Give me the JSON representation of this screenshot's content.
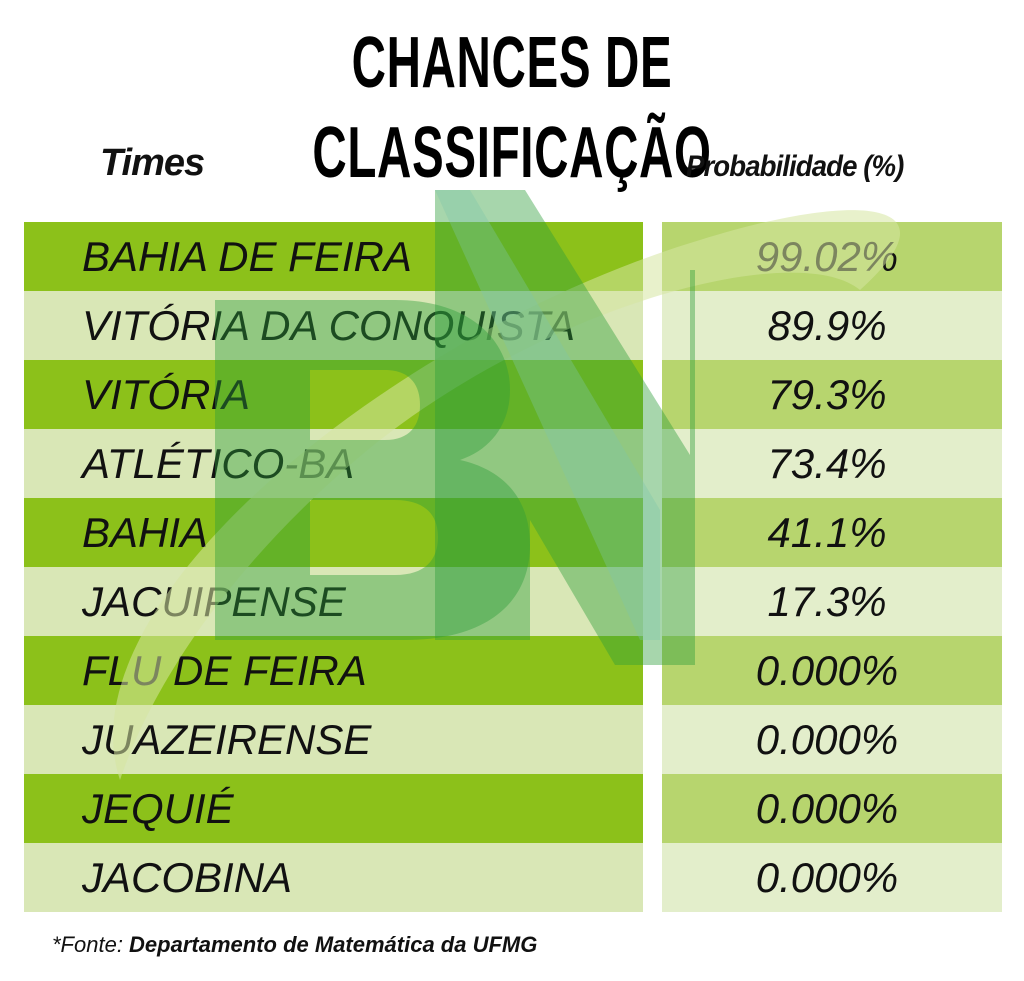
{
  "title": "CHANCES DE CLASSIFICAÇÃO",
  "headers": {
    "team": "Times",
    "probability": "Probabilidade (%)"
  },
  "rows": [
    {
      "team": "BAHIA DE FEIRA",
      "probability": "99.02%"
    },
    {
      "team": "VITÓRIA DA CONQUISTA",
      "probability": "89.9%"
    },
    {
      "team": "VITÓRIA",
      "probability": "79.3%"
    },
    {
      "team": "ATLÉTICO-BA",
      "probability": "73.4%"
    },
    {
      "team": "BAHIA",
      "probability": "41.1%"
    },
    {
      "team": "JACUIPENSE",
      "probability": "17.3%"
    },
    {
      "team": "FLU DE FEIRA",
      "probability": "0.000%"
    },
    {
      "team": "JUAZEIRENSE",
      "probability": "0.000%"
    },
    {
      "team": "JEQUIÉ",
      "probability": "0.000%"
    },
    {
      "team": "JACOBINA",
      "probability": "0.000%"
    }
  ],
  "watermark": {
    "text": "BN",
    "colors": {
      "primary": "#2e9e3a",
      "secondary": "#7fc7a8"
    }
  },
  "source": {
    "label": "*Fonte: ",
    "value": "Departamento de Matemática da UFMG"
  },
  "colors": {
    "row_dark_team": "#8cc11a",
    "row_light_team": "#d9e7b6",
    "row_dark_prob": "#b7d56e",
    "row_light_prob": "#e3eecb"
  }
}
